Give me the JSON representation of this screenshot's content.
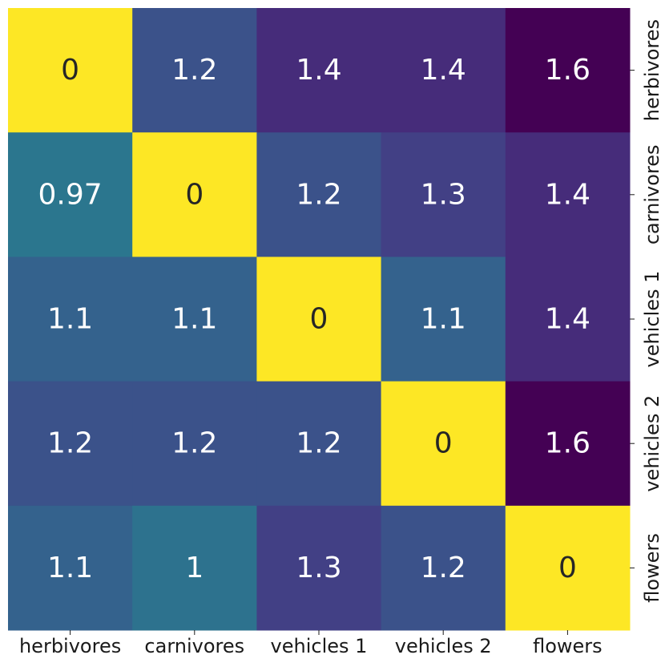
{
  "chart_data": {
    "type": "heatmap",
    "title": "",
    "xlabel": "",
    "ylabel": "",
    "x_categories": [
      "herbivores",
      "carnivores",
      "vehicles 1",
      "vehicles 2",
      "flowers"
    ],
    "y_categories": [
      "herbivores",
      "carnivores",
      "vehicles 1",
      "vehicles 2",
      "flowers"
    ],
    "y_tick_position": "right",
    "y_tick_rotation": "vertical",
    "colormap": "viridis",
    "color_range": [
      0,
      1.6
    ],
    "colorbar": false,
    "grid": false,
    "values": [
      [
        0,
        1.2,
        1.4,
        1.4,
        1.6
      ],
      [
        0.97,
        0,
        1.2,
        1.3,
        1.4
      ],
      [
        1.1,
        1.1,
        0,
        1.1,
        1.4
      ],
      [
        1.2,
        1.2,
        1.2,
        0,
        1.6
      ],
      [
        1.1,
        1,
        1.3,
        1.2,
        0
      ]
    ],
    "value_labels": [
      [
        "0",
        "1.2",
        "1.4",
        "1.4",
        "1.6"
      ],
      [
        "0.97",
        "0",
        "1.2",
        "1.3",
        "1.4"
      ],
      [
        "1.1",
        "1.1",
        "0",
        "1.1",
        "1.4"
      ],
      [
        "1.2",
        "1.2",
        "1.2",
        "0",
        "1.6"
      ],
      [
        "1.1",
        "1",
        "1.3",
        "1.2",
        "0"
      ]
    ],
    "colors": {
      "light_cell_text": "#ffffff",
      "dark_cell_text": "#262626",
      "tick_text": "#1a1a1a"
    }
  }
}
